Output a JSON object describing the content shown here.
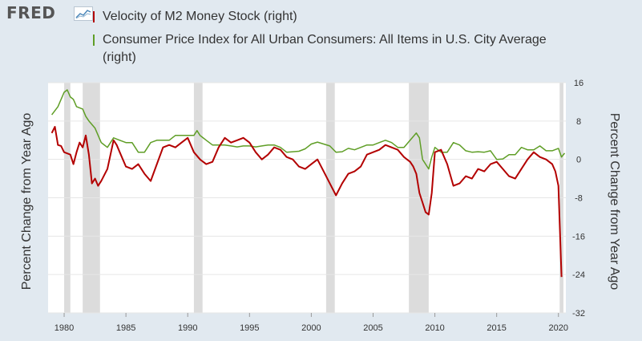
{
  "header": {
    "logo": "FRED",
    "logo_icon": "chart-line-icon"
  },
  "legend": [
    {
      "label": "Velocity of M2 Money Stock (right)",
      "color": "#b30000"
    },
    {
      "label": "Consumer Price Index for All Urban Consumers: All Items in U.S. City Average (right)",
      "color": "#5f9e26"
    }
  ],
  "axes": {
    "left_label": "Percent Change from Year Ago",
    "right_label": "Percent Change from Year Ago"
  },
  "chart_data": {
    "type": "line",
    "x_ticks": [
      "1980",
      "1985",
      "1990",
      "1995",
      "2000",
      "2005",
      "2010",
      "2015",
      "2020"
    ],
    "y_ticks": [
      "16",
      "8",
      "0",
      "-8",
      "-16",
      "-24",
      "-32"
    ],
    "xlim": [
      1978.7,
      2020.6
    ],
    "ylim": [
      -32,
      16
    ],
    "recessions": [
      [
        1980.0,
        1980.5
      ],
      [
        1981.5,
        1982.9
      ],
      [
        1990.5,
        1991.2
      ],
      [
        2001.2,
        2001.9
      ],
      [
        2007.9,
        2009.5
      ],
      [
        2020.1,
        2020.4
      ]
    ],
    "series": [
      {
        "name": "Velocity of M2 Money Stock (right)",
        "color": "#b30000",
        "x": [
          1979.0,
          1979.25,
          1979.5,
          1979.75,
          1980.0,
          1980.5,
          1980.75,
          1981.0,
          1981.25,
          1981.5,
          1981.75,
          1982.0,
          1982.25,
          1982.5,
          1982.75,
          1983.0,
          1983.5,
          1984.0,
          1984.25,
          1984.5,
          1985.0,
          1985.5,
          1986.0,
          1986.5,
          1987.0,
          1987.5,
          1988.0,
          1988.5,
          1989.0,
          1989.5,
          1990.0,
          1990.5,
          1991.0,
          1991.5,
          1992.0,
          1992.5,
          1993.0,
          1993.5,
          1994.0,
          1994.5,
          1995.0,
          1995.5,
          1996.0,
          1996.5,
          1997.0,
          1997.5,
          1998.0,
          1998.5,
          1999.0,
          1999.5,
          2000.0,
          2000.5,
          2001.0,
          2001.5,
          2002.0,
          2002.5,
          2003.0,
          2003.5,
          2004.0,
          2004.5,
          2005.0,
          2005.5,
          2006.0,
          2006.5,
          2007.0,
          2007.5,
          2008.0,
          2008.25,
          2008.5,
          2008.75,
          2009.0,
          2009.25,
          2009.5,
          2009.75,
          2010.0,
          2010.5,
          2011.0,
          2011.5,
          2012.0,
          2012.5,
          2013.0,
          2013.5,
          2014.0,
          2014.5,
          2015.0,
          2015.5,
          2016.0,
          2016.5,
          2017.0,
          2017.5,
          2018.0,
          2018.5,
          2019.0,
          2019.5,
          2019.75,
          2020.0,
          2020.25
        ],
        "values": [
          5.5,
          6.8,
          3.0,
          2.8,
          1.5,
          1.0,
          -1.0,
          1.5,
          3.5,
          2.5,
          5.0,
          1.0,
          -5.0,
          -4.0,
          -5.5,
          -4.5,
          -2.0,
          4.0,
          3.0,
          1.5,
          -1.5,
          -2.0,
          -1.0,
          -3.0,
          -4.5,
          -1.0,
          2.5,
          3.0,
          2.5,
          3.5,
          4.5,
          1.5,
          0.0,
          -1.0,
          -0.5,
          2.5,
          4.5,
          3.5,
          4.0,
          4.5,
          3.5,
          1.5,
          0.0,
          1.0,
          2.5,
          2.0,
          0.5,
          0.0,
          -1.5,
          -2.0,
          -1.0,
          0.0,
          -2.5,
          -5.0,
          -7.5,
          -5.0,
          -3.0,
          -2.5,
          -1.5,
          1.0,
          1.5,
          2.0,
          3.0,
          2.5,
          2.0,
          0.5,
          -0.5,
          -1.5,
          -3.0,
          -7.0,
          -9.0,
          -11.0,
          -11.5,
          -7.0,
          1.5,
          2.0,
          -1.0,
          -5.5,
          -5.0,
          -3.5,
          -4.0,
          -2.0,
          -2.5,
          -1.0,
          -0.5,
          -2.0,
          -3.5,
          -4.0,
          -2.0,
          0.0,
          1.5,
          0.5,
          0.0,
          -1.0,
          -2.5,
          -5.5,
          -24.5
        ]
      },
      {
        "name": "Consumer Price Index for All Urban Consumers: All Items in U.S. City Average (right)",
        "color": "#5f9e26",
        "x": [
          1979.0,
          1979.5,
          1980.0,
          1980.25,
          1980.5,
          1980.75,
          1981.0,
          1981.5,
          1981.75,
          1982.0,
          1982.5,
          1983.0,
          1983.5,
          1984.0,
          1984.5,
          1985.0,
          1985.5,
          1986.0,
          1986.5,
          1987.0,
          1987.5,
          1988.0,
          1988.5,
          1989.0,
          1989.5,
          1990.0,
          1990.5,
          1990.75,
          1991.0,
          1991.5,
          1992.0,
          1992.5,
          1993.0,
          1993.5,
          1994.0,
          1994.5,
          1995.0,
          1995.5,
          1996.0,
          1996.5,
          1997.0,
          1997.5,
          1998.0,
          1998.5,
          1999.0,
          1999.5,
          2000.0,
          2000.5,
          2001.0,
          2001.5,
          2002.0,
          2002.5,
          2003.0,
          2003.5,
          2004.0,
          2004.5,
          2005.0,
          2005.5,
          2006.0,
          2006.5,
          2007.0,
          2007.5,
          2008.0,
          2008.5,
          2008.75,
          2009.0,
          2009.5,
          2009.75,
          2010.0,
          2010.5,
          2011.0,
          2011.5,
          2012.0,
          2012.5,
          2013.0,
          2013.5,
          2014.0,
          2014.5,
          2015.0,
          2015.5,
          2016.0,
          2016.5,
          2017.0,
          2017.5,
          2018.0,
          2018.5,
          2019.0,
          2019.5,
          2020.0,
          2020.25,
          2020.5
        ],
        "values": [
          9.3,
          11.0,
          14.0,
          14.5,
          13.0,
          12.5,
          11.0,
          10.5,
          9.0,
          8.0,
          6.5,
          3.5,
          2.5,
          4.5,
          4.0,
          3.5,
          3.5,
          1.5,
          1.5,
          3.5,
          4.0,
          4.0,
          4.0,
          5.0,
          5.0,
          5.0,
          5.0,
          6.0,
          5.0,
          4.0,
          3.0,
          3.0,
          3.0,
          2.8,
          2.6,
          2.8,
          2.8,
          2.6,
          2.8,
          3.0,
          3.0,
          2.5,
          1.5,
          1.6,
          1.7,
          2.2,
          3.2,
          3.6,
          3.2,
          2.8,
          1.5,
          1.6,
          2.3,
          2.0,
          2.5,
          3.0,
          3.0,
          3.5,
          4.0,
          3.5,
          2.5,
          2.5,
          4.0,
          5.5,
          4.5,
          0.0,
          -2.0,
          0.5,
          2.5,
          1.5,
          1.5,
          3.5,
          3.0,
          1.8,
          1.5,
          1.6,
          1.5,
          1.8,
          0.0,
          0.1,
          1.0,
          1.0,
          2.5,
          2.0,
          2.0,
          2.8,
          1.8,
          1.8,
          2.3,
          0.5,
          1.3
        ]
      }
    ]
  }
}
